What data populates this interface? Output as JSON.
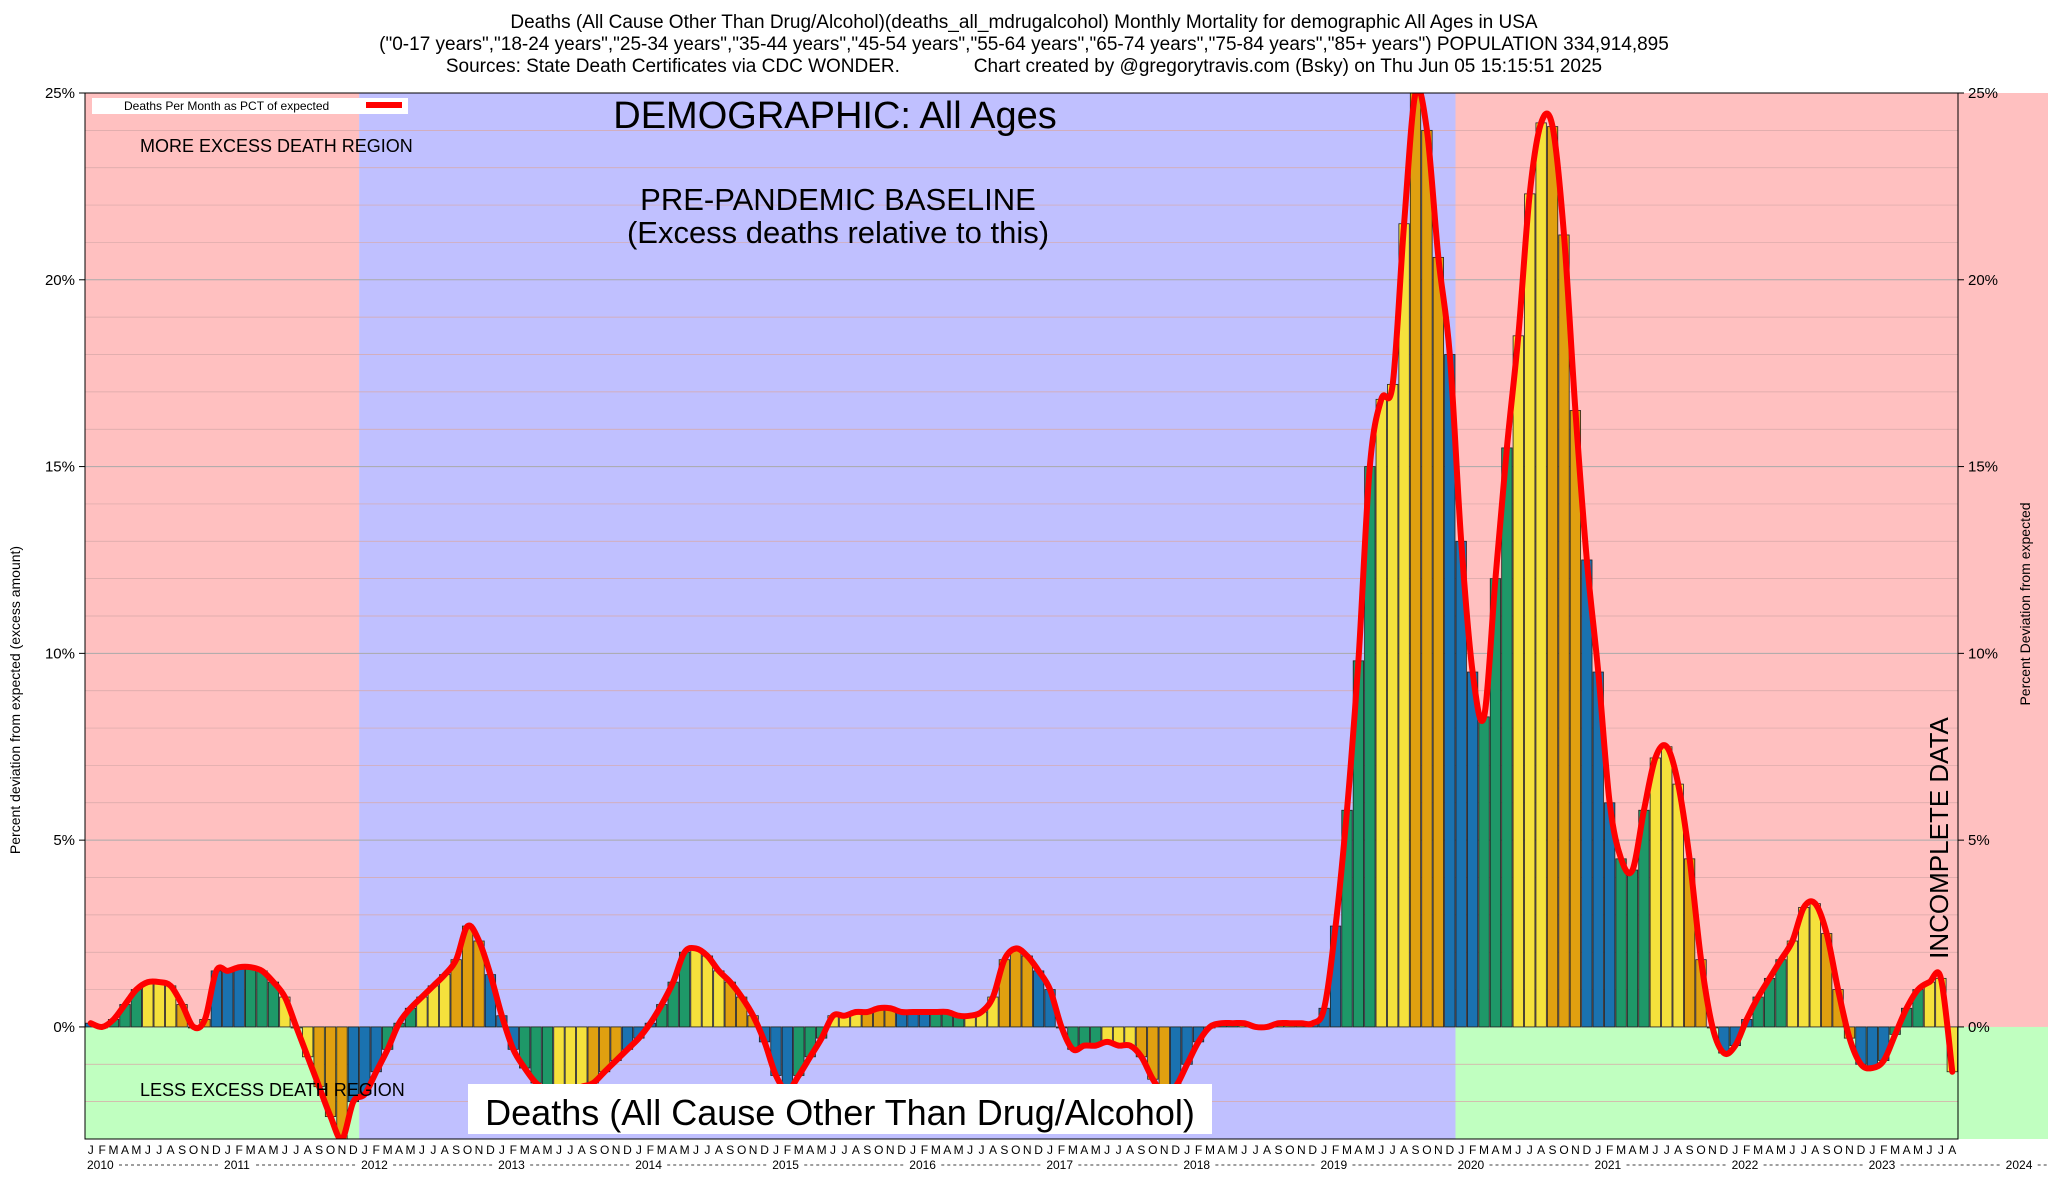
{
  "header": {
    "line1": "Deaths (All Cause Other Than Drug/Alcohol)(deaths_all_mdrugalcohol) Monthly Mortality for demographic All Ages in USA",
    "line2": "(\"0-17 years\",\"18-24 years\",\"25-34 years\",\"35-44 years\",\"45-54 years\",\"55-64 years\",\"65-74 years\",\"75-84 years\",\"85+ years\") POPULATION 334,914,895",
    "line3": "Sources: State Death Certificates via CDC WONDER.              Chart created by @gregorytravis.com (Bsky) on Thu Jun 05 15:15:51 2025"
  },
  "chart_data": {
    "type": "bar",
    "title": "DEMOGRAPHIC: All Ages",
    "bottom_label": "Deaths (All Cause Other Than Drug/Alcohol)",
    "ylabel_left": "Percent deviation from expected (excess amount)",
    "ylabel_right": "Percent Deviation from expected",
    "ylim": [
      -3,
      25
    ],
    "y_ticks": [
      0,
      5,
      10,
      15,
      20,
      25
    ],
    "y_tick_labels": [
      "0%",
      "5%",
      "10%",
      "15%",
      "20%",
      "25%"
    ],
    "grid": true,
    "legend": {
      "label": "Deaths Per Month as PCT of expected",
      "position": "top-left",
      "color": "#ff0000"
    },
    "x_start": "2010-01",
    "month_letters": [
      "J",
      "F",
      "M",
      "A",
      "M",
      "J",
      "J",
      "A",
      "S",
      "O",
      "N",
      "D"
    ],
    "years": [
      "2010",
      "2011",
      "2012",
      "2013",
      "2014",
      "2015",
      "2016",
      "2017",
      "2018",
      "2019",
      "2020",
      "2021",
      "2022",
      "2023",
      "2024"
    ],
    "regions": [
      {
        "from_month": 0,
        "to_month": 24,
        "color": "#ffc0c0"
      },
      {
        "from_month": 24,
        "to_month": 120,
        "color": "#c0c0ff"
      },
      {
        "from_month": 120,
        "to_month": 178,
        "color": "#ffc0c0"
      },
      {
        "from_month": 178,
        "to_month": 180,
        "color": "#c09090",
        "hatched": true
      }
    ],
    "green_region": {
      "from_month": 120,
      "to_month": 180,
      "color": "#c0ffc0"
    },
    "annotations": {
      "pre_pandemic_1": "PRE-PANDEMIC BASELINE",
      "pre_pandemic_2": "(Excess deaths relative to this)",
      "more_excess": "MORE EXCESS DEATH REGION",
      "less_excess": "LESS EXCESS DEATH REGION",
      "incomplete": "INCOMPLETE DATA"
    },
    "season_colors": {
      "winter": "#1a72b0",
      "spring": "#1e9868",
      "summer": "#f5e13c",
      "fall": "#e0a010"
    },
    "line_color": "#ff0000",
    "series": [
      {
        "name": "Deaths Per Month as PCT of expected",
        "values": [
          0.1,
          0.0,
          0.2,
          0.6,
          1.0,
          1.2,
          1.2,
          1.1,
          0.6,
          0.0,
          0.2,
          1.5,
          1.5,
          1.6,
          1.6,
          1.5,
          1.2,
          0.8,
          0.0,
          -0.8,
          -1.6,
          -2.4,
          -3.0,
          -2.0,
          -1.8,
          -1.2,
          -0.6,
          0.1,
          0.5,
          0.8,
          1.1,
          1.4,
          1.8,
          2.7,
          2.3,
          1.4,
          0.3,
          -0.6,
          -1.1,
          -1.5,
          -1.7,
          -1.8,
          -1.7,
          -1.6,
          -1.5,
          -1.2,
          -0.9,
          -0.6,
          -0.3,
          0.1,
          0.6,
          1.2,
          2.0,
          2.1,
          1.9,
          1.5,
          1.2,
          0.8,
          0.3,
          -0.4,
          -1.3,
          -1.7,
          -1.3,
          -0.8,
          -0.3,
          0.3,
          0.3,
          0.4,
          0.4,
          0.5,
          0.5,
          0.4,
          0.4,
          0.4,
          0.4,
          0.4,
          0.3,
          0.3,
          0.4,
          0.8,
          1.8,
          2.1,
          1.9,
          1.5,
          1.0,
          0.0,
          -0.6,
          -0.5,
          -0.5,
          -0.4,
          -0.5,
          -0.5,
          -0.8,
          -1.4,
          -1.8,
          -1.6,
          -1.0,
          -0.4,
          0.0,
          0.1,
          0.1,
          0.1,
          0.0,
          0.0,
          0.1,
          0.1,
          0.1,
          0.1,
          0.5,
          2.7,
          5.8,
          9.8,
          15.0,
          16.8,
          17.2,
          21.5,
          25.0,
          24.0,
          20.6,
          18.0,
          13.0,
          9.5,
          8.3,
          12.0,
          15.5,
          18.5,
          22.3,
          24.2,
          24.1,
          21.2,
          16.5,
          12.5,
          9.5,
          6.0,
          4.5,
          4.2,
          5.8,
          7.2,
          7.5,
          6.5,
          4.5,
          1.8,
          0.0,
          -0.7,
          -0.5,
          0.2,
          0.8,
          1.3,
          1.8,
          2.3,
          3.2,
          3.3,
          2.5,
          1.0,
          -0.3,
          -1.0,
          -1.1,
          -0.9,
          -0.2,
          0.5,
          1.0,
          1.2,
          1.3,
          -1.2
        ]
      }
    ]
  }
}
